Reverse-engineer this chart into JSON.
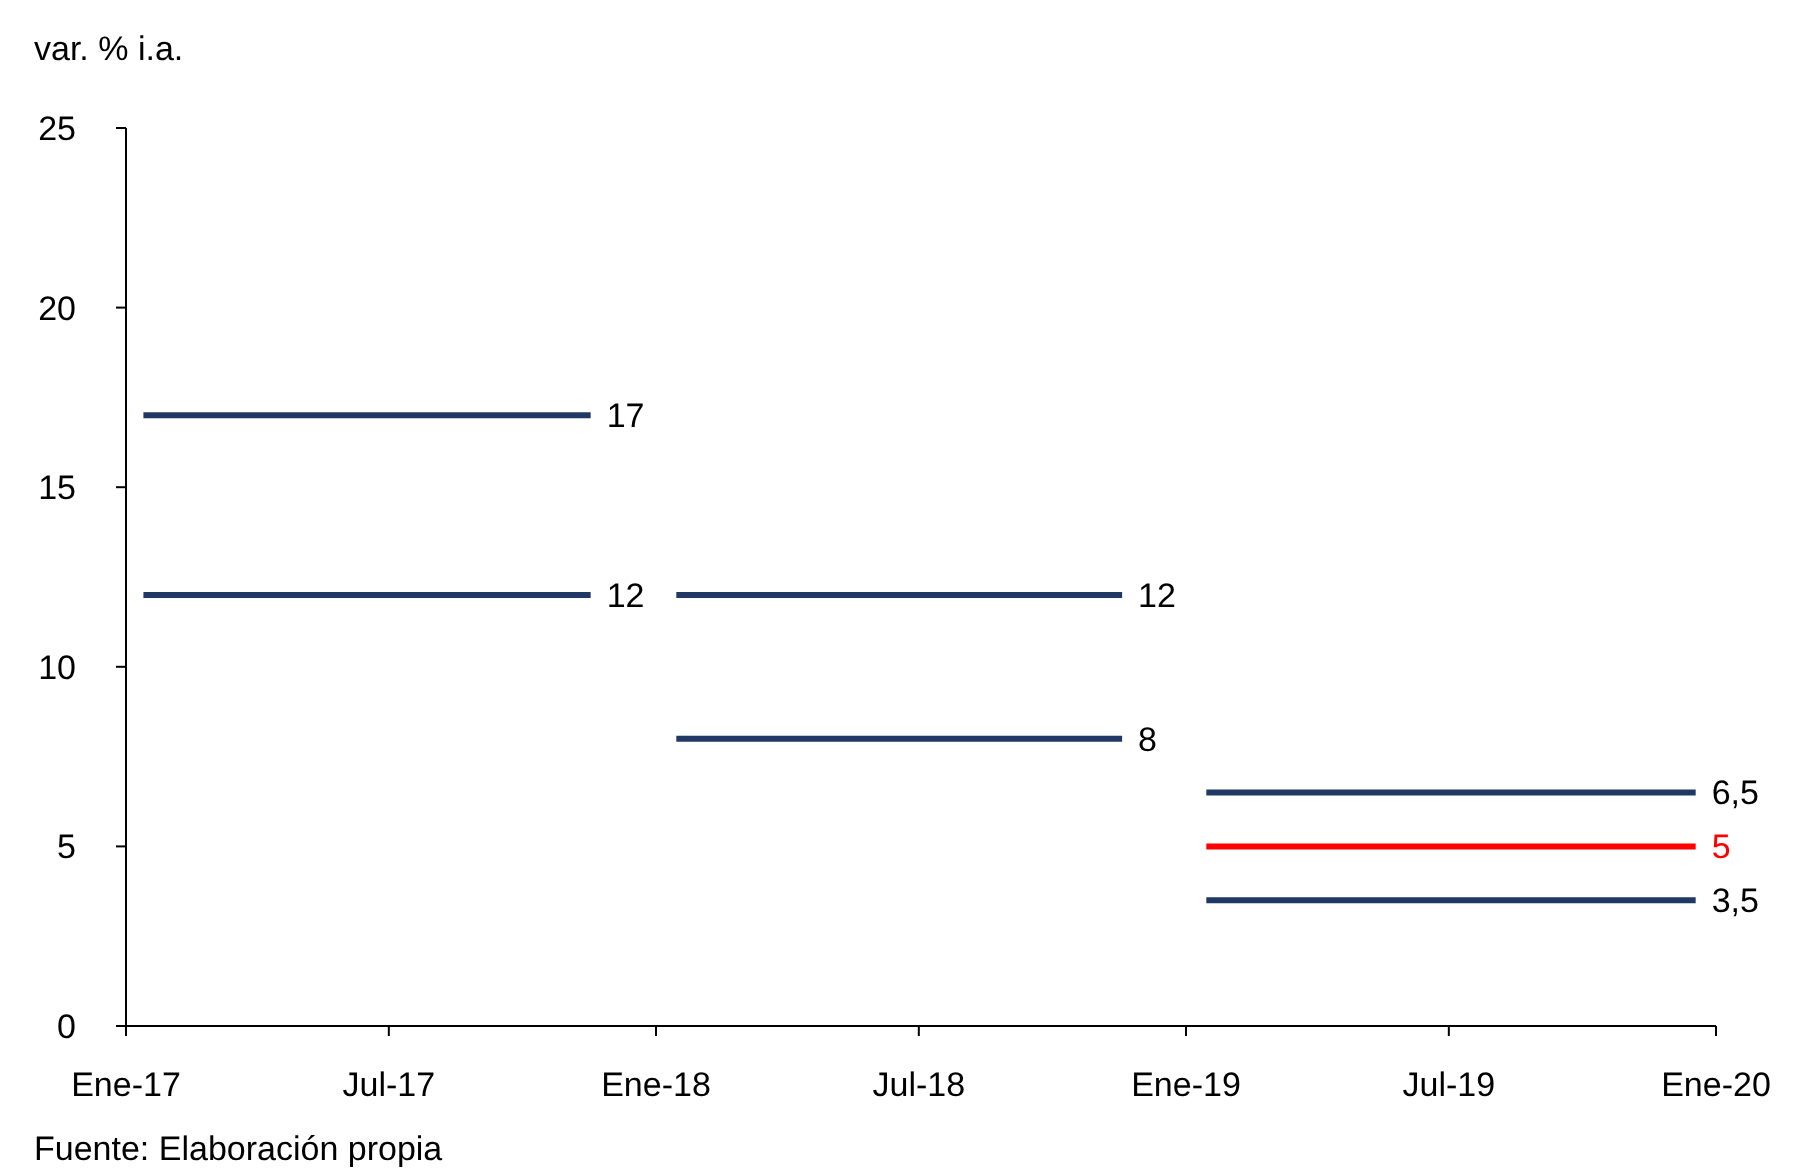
{
  "chart_data": {
    "type": "line",
    "ylabel": "var. % i.a.",
    "annotations": [
      "Fuente: Elaboración propia"
    ],
    "xlim": [
      "2017-01-01",
      "2020-01-01"
    ],
    "xticks": [
      {
        "value": "2017-01-01",
        "label": "Ene-17"
      },
      {
        "value": "2017-07-01",
        "label": "Jul-17"
      },
      {
        "value": "2018-01-01",
        "label": "Ene-18"
      },
      {
        "value": "2018-07-01",
        "label": "Jul-18"
      },
      {
        "value": "2019-01-01",
        "label": "Ene-19"
      },
      {
        "value": "2019-07-01",
        "label": "Jul-19"
      },
      {
        "value": "2020-01-01",
        "label": "Ene-20"
      }
    ],
    "ylim": [
      0,
      25
    ],
    "yticks": [
      0,
      5,
      10,
      15,
      20,
      25
    ],
    "marker": "none",
    "line_style": "solid",
    "series": [
      {
        "color": "#1f3864",
        "x": [
          "2017-01-13",
          "2017-11-17"
        ],
        "values": [
          17,
          17
        ],
        "value_labels": [
          null,
          "17"
        ]
      },
      {
        "color": "#1f3864",
        "x": [
          "2017-01-13",
          "2017-11-17"
        ],
        "values": [
          12,
          12
        ],
        "value_labels": [
          null,
          "12"
        ]
      },
      {
        "color": "#1f3864",
        "x": [
          "2018-01-15",
          "2018-11-18"
        ],
        "values": [
          12,
          12
        ],
        "value_labels": [
          null,
          "12"
        ]
      },
      {
        "color": "#1f3864",
        "x": [
          "2018-01-15",
          "2018-11-18"
        ],
        "values": [
          8,
          8
        ],
        "value_labels": [
          null,
          "8"
        ]
      },
      {
        "color": "#1f3864",
        "x": [
          "2019-01-15",
          "2019-12-18"
        ],
        "values": [
          6.5,
          6.5
        ],
        "value_labels": [
          null,
          "6,5"
        ]
      },
      {
        "color": "#ff0000",
        "x": [
          "2019-01-15",
          "2019-12-18"
        ],
        "values": [
          5,
          5
        ],
        "value_labels": [
          null,
          "5"
        ]
      },
      {
        "color": "#1f3864",
        "x": [
          "2019-01-15",
          "2019-12-18"
        ],
        "values": [
          3.5,
          3.5
        ],
        "value_labels": [
          null,
          "3,5"
        ]
      }
    ]
  }
}
